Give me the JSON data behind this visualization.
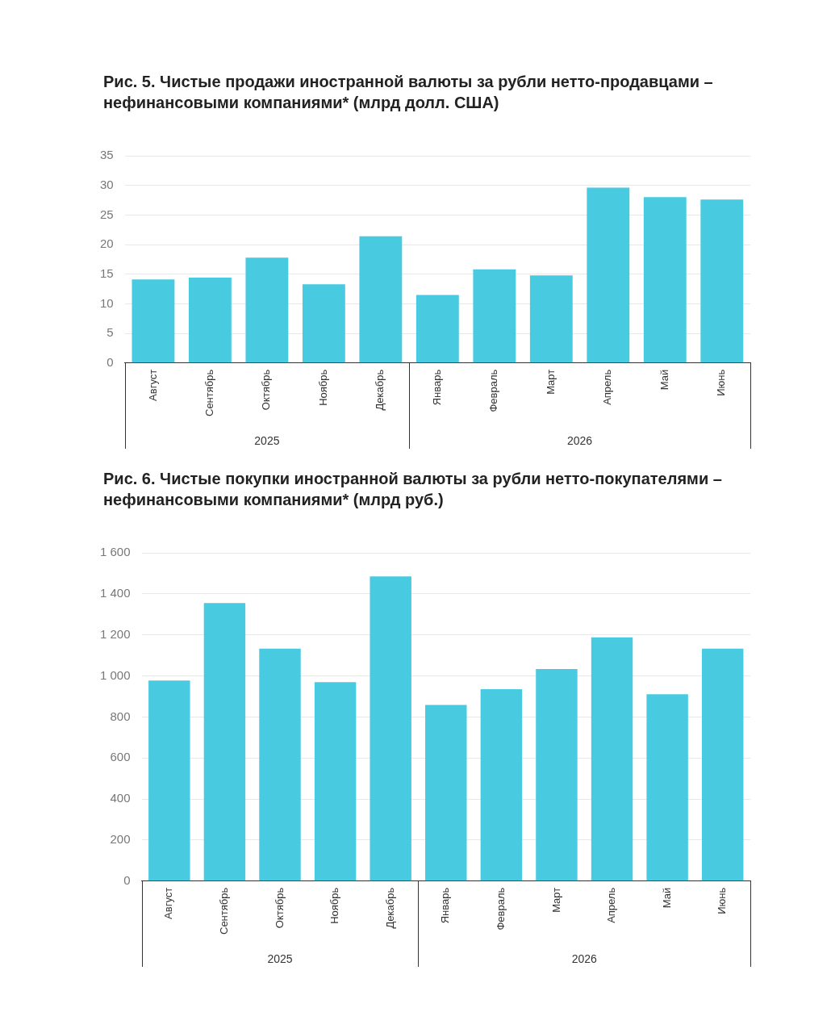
{
  "chart_data": [
    {
      "type": "bar",
      "title": "Рис. 5. Чистые продажи иностранной валюты за рубли нетто-продавцами – нефинансовыми компаниями* (млрд долл. США)",
      "categories": [
        "Август",
        "Сентябрь",
        "Октябрь",
        "Ноябрь",
        "Декабрь",
        "Январь",
        "Февраль",
        "Март",
        "Апрель",
        "Май",
        "Июнь"
      ],
      "values": [
        14.1,
        14.4,
        17.8,
        13.3,
        21.4,
        11.5,
        15.8,
        14.8,
        29.6,
        28.0,
        27.6
      ],
      "color": "#48cae0",
      "ylim": [
        0,
        35
      ],
      "yticks": [
        0,
        5,
        10,
        15,
        20,
        25,
        30,
        35
      ],
      "grid": "y",
      "annotations": [
        "2025",
        "2026"
      ]
    },
    {
      "type": "bar",
      "title": "Рис. 6. Чистые покупки иностранной валюты за рубли нетто-покупателями – нефинансовыми компаниями* (млрд руб.)",
      "categories": [
        "Август",
        "Сентябрь",
        "Октябрь",
        "Ноябрь",
        "Декабрь",
        "Январь",
        "Февраль",
        "Март",
        "Апрель",
        "Май",
        "Июнь"
      ],
      "values": [
        978,
        1355,
        1133,
        970,
        1485,
        859,
        935,
        1034,
        1188,
        911,
        1133
      ],
      "color": "#48cae0",
      "ylim": [
        0,
        1600
      ],
      "yticks": [
        0,
        200,
        400,
        600,
        800,
        {
          "value": 1000,
          "label": "1 000"
        },
        {
          "value": 1200,
          "label": "1 200"
        },
        {
          "value": 1400,
          "label": "1 400"
        },
        {
          "value": 1600,
          "label": "1 600"
        }
      ],
      "grid": "y",
      "annotations": [
        "2025",
        "2026"
      ]
    }
  ]
}
